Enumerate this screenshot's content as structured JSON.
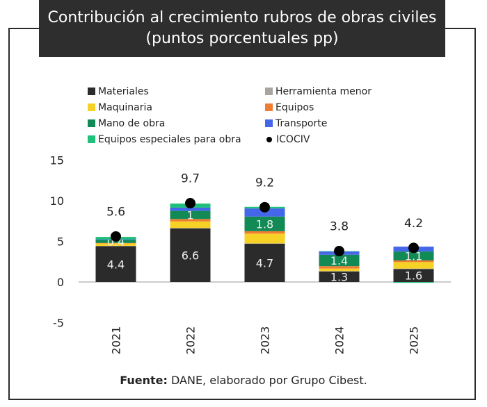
{
  "title": "Contribución al crecimiento rubros de obras civiles (puntos porcentuales pp)",
  "footer": {
    "label": "Fuente:",
    "text": " DANE, elaborado por Grupo Cibest."
  },
  "chart_data": {
    "type": "bar",
    "stacked": true,
    "title": "Contribución al crecimiento rubros de obras civiles (puntos porcentuales pp)",
    "categories": [
      "2021",
      "2022",
      "2023",
      "2024",
      "2025"
    ],
    "ylim": [
      -5,
      15
    ],
    "yticks": [
      -5,
      0,
      5,
      10,
      15
    ],
    "grid": false,
    "legend": "top",
    "series": [
      {
        "name": "Materiales",
        "color": "#2b2b2b",
        "values": [
          4.4,
          6.6,
          4.7,
          1.3,
          1.6
        ],
        "labels": [
          "4.4",
          "6.6",
          "4.7",
          "1.3",
          "1.6"
        ]
      },
      {
        "name": "Herramienta menor",
        "color": "#aaa49f",
        "values": [
          0.05,
          0.05,
          0.05,
          0.05,
          0.05
        ],
        "labels": [
          "",
          "",
          "",
          "",
          ""
        ]
      },
      {
        "name": "Maquinaria",
        "color": "#f6d126",
        "values": [
          0.3,
          0.8,
          1.2,
          0.3,
          0.8
        ],
        "labels": [
          "",
          "",
          "",
          "",
          ""
        ]
      },
      {
        "name": "Equipos",
        "color": "#ef7d32",
        "values": [
          0.05,
          0.3,
          0.3,
          0.3,
          0.2
        ],
        "labels": [
          "",
          "",
          "",
          "",
          ""
        ]
      },
      {
        "name": "Mano de obra",
        "color": "#128a55",
        "values": [
          0.4,
          1.0,
          1.8,
          1.4,
          1.1
        ],
        "labels": [
          "0.4",
          "1",
          "1.8",
          "1.4",
          "1.1"
        ]
      },
      {
        "name": "Transporte",
        "color": "#4466e8",
        "values": [
          0.05,
          0.4,
          1.0,
          0.4,
          0.6
        ],
        "labels": [
          "",
          "",
          "",
          "",
          ""
        ]
      },
      {
        "name": "Equipos especiales para obra",
        "color": "#1fc07a",
        "values": [
          0.3,
          0.5,
          0.2,
          0.05,
          -0.1
        ],
        "labels": [
          "",
          "",
          "",
          "",
          ""
        ]
      }
    ],
    "line_series": {
      "name": "ICOCIV",
      "color": "#000000",
      "values": [
        5.6,
        9.7,
        9.2,
        3.8,
        4.2
      ],
      "labels": [
        "5.6",
        "9.7",
        "9.2",
        "3.8",
        "4.2"
      ]
    }
  }
}
